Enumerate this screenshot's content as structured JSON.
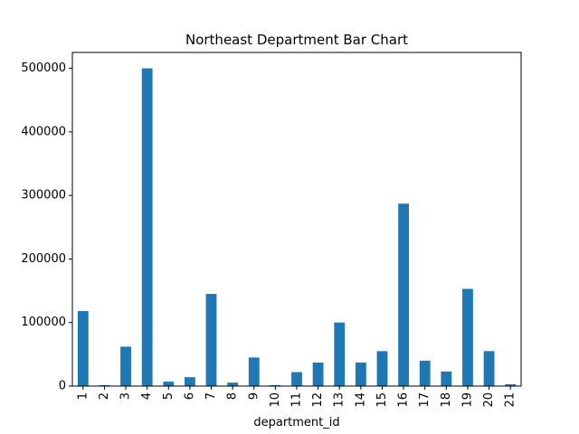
{
  "chart_data": {
    "type": "bar",
    "title": "Northeast Department Bar Chart",
    "xlabel": "department_id",
    "ylabel": "",
    "categories": [
      "1",
      "2",
      "3",
      "4",
      "5",
      "6",
      "7",
      "8",
      "9",
      "10",
      "11",
      "12",
      "13",
      "14",
      "15",
      "16",
      "17",
      "18",
      "19",
      "20",
      "21"
    ],
    "values": [
      118000,
      1500,
      62000,
      500000,
      7000,
      14000,
      145000,
      5500,
      45000,
      1500,
      22000,
      37000,
      100000,
      37000,
      55000,
      287000,
      40000,
      23000,
      153000,
      55000,
      3000
    ],
    "ylim": [
      0,
      525000
    ],
    "yticks": [
      "0",
      "100000",
      "200000",
      "300000",
      "400000",
      "500000"
    ],
    "bar_color": "#1f77b4",
    "grid": false,
    "legend": "none"
  }
}
